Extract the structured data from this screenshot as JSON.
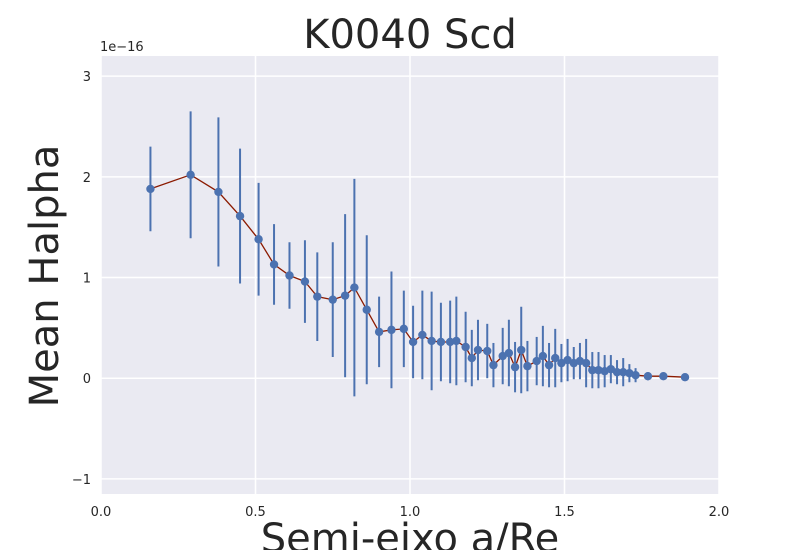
{
  "chart_data": {
    "type": "scatter",
    "title": "K0040 Scd",
    "xlabel": "Semi-eixo a/Re",
    "ylabel": "Mean Halpha",
    "y_offset_text": "1e−16",
    "xlim": [
      0.0,
      2.0
    ],
    "ylim": [
      -1.15,
      3.2
    ],
    "xticks": [
      0.0,
      0.5,
      1.0,
      1.5,
      2.0
    ],
    "xtick_labels": [
      "0.0",
      "0.5",
      "1.0",
      "1.5",
      "2.0"
    ],
    "yticks": [
      -1,
      0,
      1,
      2,
      3
    ],
    "ytick_labels": [
      "−1",
      "0",
      "1",
      "2",
      "3"
    ],
    "grid": true,
    "colors": {
      "background": "#eaeaf2",
      "grid": "#ffffff",
      "points": "#4c72b0",
      "errorbars": "#4c72b0",
      "line": "#8b1a00"
    },
    "series": [
      {
        "x": [
          0.16,
          0.29,
          0.38,
          0.45,
          0.51,
          0.56,
          0.61,
          0.66,
          0.7,
          0.75,
          0.79,
          0.82,
          0.86,
          0.9,
          0.94,
          0.98,
          1.01,
          1.04,
          1.07,
          1.1,
          1.13,
          1.15,
          1.18,
          1.2,
          1.22,
          1.25,
          1.27,
          1.3,
          1.32,
          1.34,
          1.36,
          1.38,
          1.41,
          1.43,
          1.45,
          1.47,
          1.49,
          1.51,
          1.53,
          1.55,
          1.57,
          1.59,
          1.61,
          1.63,
          1.65,
          1.67,
          1.69,
          1.71,
          1.73,
          1.77,
          1.82,
          1.89
        ],
        "y": [
          1.88,
          2.02,
          1.85,
          1.61,
          1.38,
          1.13,
          1.02,
          0.96,
          0.81,
          0.78,
          0.82,
          0.9,
          0.68,
          0.46,
          0.48,
          0.49,
          0.36,
          0.43,
          0.37,
          0.36,
          0.36,
          0.37,
          0.31,
          0.2,
          0.28,
          0.27,
          0.13,
          0.22,
          0.25,
          0.11,
          0.28,
          0.12,
          0.17,
          0.22,
          0.13,
          0.2,
          0.15,
          0.18,
          0.15,
          0.17,
          0.15,
          0.08,
          0.08,
          0.07,
          0.09,
          0.06,
          0.06,
          0.05,
          0.03,
          0.02,
          0.02,
          0.01
        ],
        "err": [
          0.42,
          0.63,
          0.74,
          0.67,
          0.56,
          0.4,
          0.33,
          0.41,
          0.44,
          0.57,
          0.81,
          1.08,
          0.74,
          0.35,
          0.58,
          0.38,
          0.36,
          0.44,
          0.49,
          0.39,
          0.41,
          0.44,
          0.35,
          0.28,
          0.3,
          0.27,
          0.22,
          0.28,
          0.33,
          0.25,
          0.43,
          0.25,
          0.24,
          0.3,
          0.22,
          0.29,
          0.19,
          0.21,
          0.16,
          0.18,
          0.24,
          0.18,
          0.18,
          0.16,
          0.14,
          0.12,
          0.14,
          0.09,
          0.07,
          0.04,
          0.03,
          0.02
        ]
      }
    ]
  }
}
